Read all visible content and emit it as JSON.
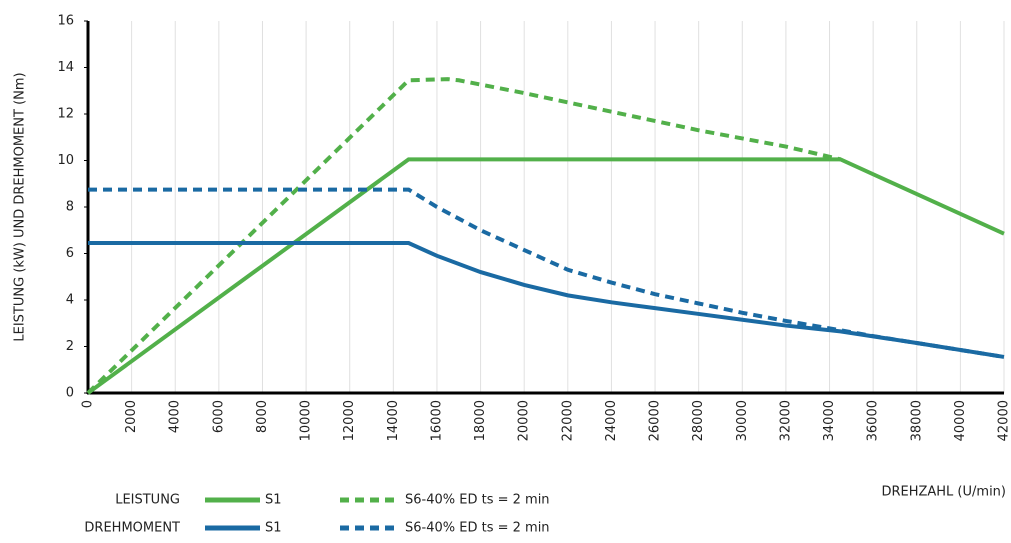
{
  "chart_data": {
    "type": "line",
    "ylabel": "LEISTUNG (kW) UND DREHMOMENT (Nm)",
    "xlabel": "DREHZAHL (U/min)",
    "legend_groups": [
      "LEISTUNG",
      "DREHMOMENT"
    ],
    "xlim": [
      0,
      42000
    ],
    "xticks": [
      0,
      2000,
      4000,
      6000,
      8000,
      10000,
      12000,
      14000,
      16000,
      18000,
      20000,
      22000,
      24000,
      26000,
      28000,
      30000,
      32000,
      34000,
      36000,
      38000,
      40000,
      42000
    ],
    "ylim": [
      0,
      16
    ],
    "yticks": [
      0,
      2,
      4,
      6,
      8,
      10,
      12,
      14,
      16
    ],
    "grid": "x",
    "series": [
      {
        "name": "S1",
        "color": "#52b04a",
        "dashed": false,
        "x": [
          0,
          14700,
          34500,
          42000
        ],
        "values": [
          0,
          10.05,
          10.05,
          6.85
        ]
      },
      {
        "name": "S6-40% ED ts = 2 min",
        "color": "#52b04a",
        "dashed": true,
        "x": [
          0,
          14700,
          16500,
          17000,
          20000,
          24000,
          28000,
          32000,
          34500
        ],
        "values": [
          0,
          13.45,
          13.5,
          13.45,
          12.9,
          12.1,
          11.3,
          10.6,
          10.05
        ]
      },
      {
        "name": "S1",
        "color": "#1a6aa3",
        "dashed": false,
        "x": [
          0,
          14700,
          16000,
          18000,
          20000,
          22000,
          24000,
          26000,
          28000,
          30000,
          32000,
          34500,
          38000,
          42000
        ],
        "values": [
          6.45,
          6.45,
          5.9,
          5.2,
          4.65,
          4.2,
          3.9,
          3.65,
          3.4,
          3.15,
          2.9,
          2.65,
          2.15,
          1.55
        ]
      },
      {
        "name": "S6-40% ED ts = 2 min",
        "color": "#1a6aa3",
        "dashed": true,
        "x": [
          0,
          14700,
          16000,
          18000,
          20000,
          22000,
          24000,
          26000,
          28000,
          30000,
          32000,
          34500,
          36000,
          42000
        ],
        "values": [
          8.75,
          8.75,
          8.0,
          7.0,
          6.15,
          5.3,
          4.75,
          4.25,
          3.85,
          3.45,
          3.1,
          2.7,
          2.45,
          1.55
        ]
      }
    ]
  }
}
